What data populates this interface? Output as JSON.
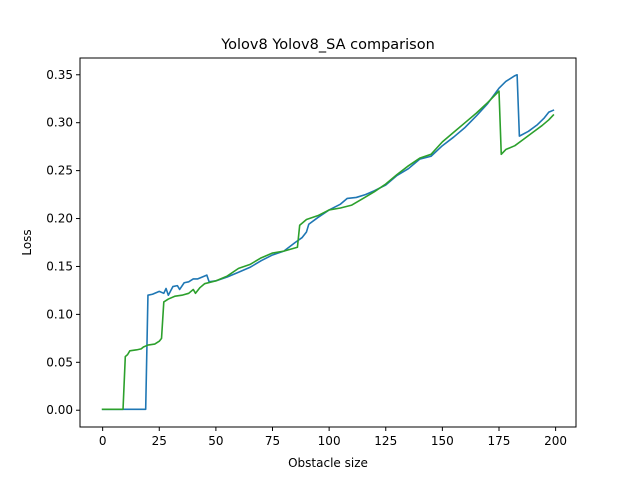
{
  "chart_data": {
    "type": "line",
    "title": "Yolov8 Yolov8_SA comparison",
    "xlabel": "Obstacle size",
    "ylabel": "Loss",
    "xlim": [
      -10,
      209
    ],
    "ylim": [
      -0.0175,
      0.3675
    ],
    "xticks": [
      0,
      25,
      50,
      75,
      100,
      125,
      150,
      175,
      200
    ],
    "yticks": [
      0.0,
      0.05,
      0.1,
      0.15,
      0.2,
      0.25,
      0.3,
      0.35
    ],
    "ytick_labels": [
      "0.00",
      "0.05",
      "0.10",
      "0.15",
      "0.20",
      "0.25",
      "0.30",
      "0.35"
    ],
    "grid": false,
    "legend": "none",
    "series": [
      {
        "color": "#1f77b4",
        "points": [
          [
            0,
            0.001
          ],
          [
            19,
            0.001
          ],
          [
            20,
            0.12
          ],
          [
            22,
            0.121
          ],
          [
            25,
            0.124
          ],
          [
            27,
            0.122
          ],
          [
            28,
            0.127
          ],
          [
            29,
            0.12
          ],
          [
            31,
            0.129
          ],
          [
            33,
            0.13
          ],
          [
            34,
            0.126
          ],
          [
            36,
            0.133
          ],
          [
            38,
            0.134
          ],
          [
            40,
            0.137
          ],
          [
            42,
            0.137
          ],
          [
            44,
            0.139
          ],
          [
            46,
            0.141
          ],
          [
            47,
            0.134
          ],
          [
            50,
            0.135
          ],
          [
            55,
            0.139
          ],
          [
            60,
            0.144
          ],
          [
            65,
            0.149
          ],
          [
            70,
            0.156
          ],
          [
            75,
            0.162
          ],
          [
            80,
            0.166
          ],
          [
            85,
            0.175
          ],
          [
            88,
            0.18
          ],
          [
            90,
            0.186
          ],
          [
            91,
            0.194
          ],
          [
            95,
            0.201
          ],
          [
            100,
            0.209
          ],
          [
            105,
            0.215
          ],
          [
            108,
            0.221
          ],
          [
            112,
            0.222
          ],
          [
            116,
            0.225
          ],
          [
            120,
            0.229
          ],
          [
            125,
            0.235
          ],
          [
            130,
            0.245
          ],
          [
            135,
            0.252
          ],
          [
            140,
            0.262
          ],
          [
            145,
            0.265
          ],
          [
            150,
            0.276
          ],
          [
            155,
            0.285
          ],
          [
            160,
            0.295
          ],
          [
            165,
            0.307
          ],
          [
            170,
            0.32
          ],
          [
            175,
            0.336
          ],
          [
            178,
            0.343
          ],
          [
            182,
            0.349
          ],
          [
            183,
            0.35
          ],
          [
            184,
            0.286
          ],
          [
            188,
            0.291
          ],
          [
            192,
            0.298
          ],
          [
            195,
            0.305
          ],
          [
            197,
            0.311
          ],
          [
            199,
            0.313
          ]
        ]
      },
      {
        "color": "#2ca02c",
        "points": [
          [
            0,
            0.001
          ],
          [
            9,
            0.001
          ],
          [
            10,
            0.056
          ],
          [
            11,
            0.058
          ],
          [
            12,
            0.062
          ],
          [
            15,
            0.063
          ],
          [
            17,
            0.064
          ],
          [
            18,
            0.066
          ],
          [
            20,
            0.068
          ],
          [
            23,
            0.069
          ],
          [
            25,
            0.072
          ],
          [
            26,
            0.075
          ],
          [
            27,
            0.113
          ],
          [
            29,
            0.116
          ],
          [
            32,
            0.119
          ],
          [
            35,
            0.12
          ],
          [
            38,
            0.122
          ],
          [
            40,
            0.126
          ],
          [
            41,
            0.122
          ],
          [
            43,
            0.128
          ],
          [
            45,
            0.132
          ],
          [
            50,
            0.135
          ],
          [
            55,
            0.14
          ],
          [
            60,
            0.148
          ],
          [
            65,
            0.152
          ],
          [
            70,
            0.159
          ],
          [
            75,
            0.164
          ],
          [
            80,
            0.166
          ],
          [
            86,
            0.17
          ],
          [
            87,
            0.193
          ],
          [
            90,
            0.199
          ],
          [
            95,
            0.203
          ],
          [
            100,
            0.209
          ],
          [
            105,
            0.211
          ],
          [
            110,
            0.214
          ],
          [
            115,
            0.221
          ],
          [
            120,
            0.228
          ],
          [
            125,
            0.236
          ],
          [
            130,
            0.246
          ],
          [
            135,
            0.255
          ],
          [
            140,
            0.263
          ],
          [
            145,
            0.267
          ],
          [
            150,
            0.28
          ],
          [
            155,
            0.29
          ],
          [
            160,
            0.3
          ],
          [
            165,
            0.31
          ],
          [
            170,
            0.321
          ],
          [
            175,
            0.333
          ],
          [
            176,
            0.267
          ],
          [
            178,
            0.272
          ],
          [
            182,
            0.276
          ],
          [
            186,
            0.283
          ],
          [
            190,
            0.29
          ],
          [
            194,
            0.297
          ],
          [
            197,
            0.303
          ],
          [
            199,
            0.308
          ]
        ]
      }
    ]
  }
}
